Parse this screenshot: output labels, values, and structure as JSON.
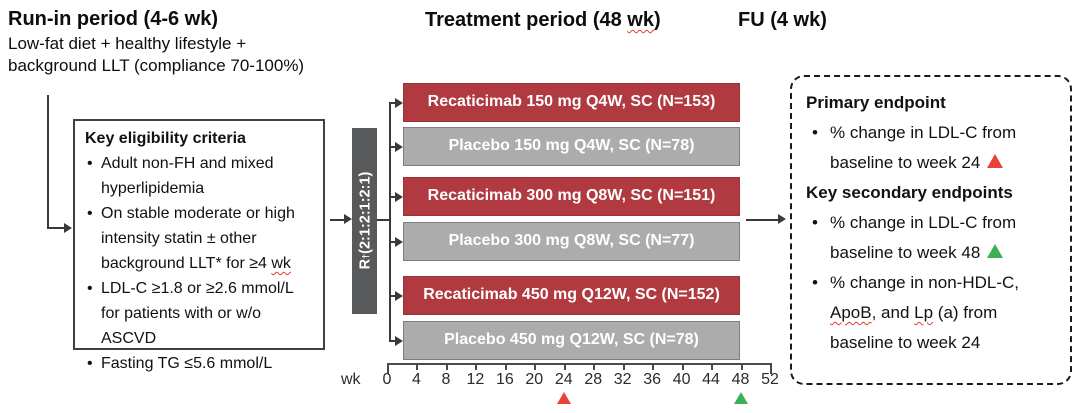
{
  "runin": {
    "title": "Run-in period (4-6 wk)",
    "subtitle_lines": [
      "Low-fat diet + healthy lifestyle +",
      "background LLT (compliance 70-100%)"
    ]
  },
  "eligibility": {
    "heading": "Key eligibility criteria",
    "items": [
      {
        "pre": "Adult non-FH and mixed hyperlipidemia",
        "wavy": "",
        "post": ""
      },
      {
        "pre": "On stable moderate or high intensity statin ± other background LLT* for ≥4 ",
        "wavy": "wk",
        "post": ""
      },
      {
        "pre": "LDL-C ≥1.8 or ≥2.6 mmol/L for patients with or w/o ASCVD",
        "wavy": "",
        "post": ""
      },
      {
        "pre": "Fasting TG ≤5.6 mmol/L",
        "wavy": "",
        "post": ""
      }
    ]
  },
  "treatment": {
    "title_pre": "Treatment period (48 ",
    "title_wavy": "wk",
    "title_post": ")",
    "fu_title": "FU (4 wk)",
    "randomization": {
      "prefix": "R",
      "dagger": "†",
      "ratio": " (2:1:2:1:2:1)"
    },
    "arms": [
      {
        "label": "Recaticimab 150 mg Q4W, SC (N=153)",
        "type": "active"
      },
      {
        "label": "Placebo 150 mg Q4W, SC (N=78)",
        "type": "placebo"
      },
      {
        "label": "Recaticimab 300 mg Q8W, SC (N=151)",
        "type": "active"
      },
      {
        "label": "Placebo 300 mg Q8W, SC (N=77)",
        "type": "placebo"
      },
      {
        "label": "Recaticimab 450 mg Q12W, SC (N=152)",
        "type": "active"
      },
      {
        "label": "Placebo 450 mg Q12W, SC (N=78)",
        "type": "placebo"
      }
    ]
  },
  "axis": {
    "unit_label": "wk",
    "weeks": [
      0,
      4,
      8,
      12,
      16,
      20,
      24,
      28,
      32,
      36,
      40,
      44,
      48,
      52
    ],
    "markers": [
      {
        "week": 24,
        "color_key": "marker_red"
      },
      {
        "week": 48,
        "color_key": "marker_green"
      }
    ]
  },
  "endpoints": {
    "primary_heading": "Primary endpoint",
    "primary_item": {
      "text": "% change in LDL-C from baseline to week 24 ",
      "marker": "red-triangle"
    },
    "secondary_heading": "Key secondary endpoints",
    "secondary_item1": {
      "text": "% change in LDL-C from baseline to week 48 ",
      "marker": "green-triangle"
    },
    "secondary_item2": {
      "pre": "% change in non-HDL-C, ",
      "wavy1": "ApoB",
      "mid1": ", and ",
      "wavy2": "Lp",
      "post": " (a) from baseline to week 24"
    }
  },
  "colors": {
    "active": "#B13A41",
    "active_border": "#9A3238",
    "placebo": "#ACACAC",
    "placebo_border": "#7E7E7E",
    "randomization_bar": "#58595B",
    "marker_red": "#E8433A",
    "marker_green": "#3CB054"
  }
}
